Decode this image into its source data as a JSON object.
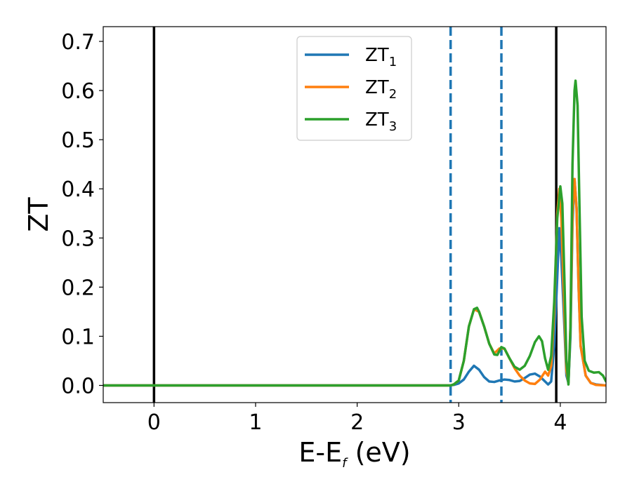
{
  "chart_data": {
    "type": "line",
    "xlabel": "E-E",
    "xlabel_sub": "f",
    "xlabel_unit": " (eV)",
    "ylabel": "ZT",
    "xlim": [
      -0.5,
      4.45
    ],
    "ylim": [
      -0.035,
      0.73
    ],
    "xticks": [
      0,
      1,
      2,
      3,
      4
    ],
    "xtick_labels": [
      "0",
      "1",
      "2",
      "3",
      "4"
    ],
    "yticks": [
      0.0,
      0.1,
      0.2,
      0.3,
      0.4,
      0.5,
      0.6,
      0.7
    ],
    "ytick_labels": [
      "0.0",
      "0.1",
      "0.2",
      "0.3",
      "0.4",
      "0.5",
      "0.6",
      "0.7"
    ],
    "grid": false,
    "legend_position": "top-center",
    "vlines": [
      {
        "x": 0.0,
        "style": "solid",
        "color": "#000000"
      },
      {
        "x": 3.96,
        "style": "solid",
        "color": "#000000"
      },
      {
        "x": 2.92,
        "style": "dashed",
        "color": "#1f77b4"
      },
      {
        "x": 3.42,
        "style": "dashed",
        "color": "#1f77b4"
      }
    ],
    "series": [
      {
        "name": "ZT",
        "sub": "1",
        "color": "#1f77b4",
        "points": [
          [
            -0.5,
            0
          ],
          [
            2.9,
            0
          ],
          [
            2.95,
            0.001
          ],
          [
            3.0,
            0.004
          ],
          [
            3.05,
            0.012
          ],
          [
            3.1,
            0.028
          ],
          [
            3.15,
            0.04
          ],
          [
            3.2,
            0.032
          ],
          [
            3.25,
            0.017
          ],
          [
            3.3,
            0.008
          ],
          [
            3.35,
            0.007
          ],
          [
            3.4,
            0.01
          ],
          [
            3.45,
            0.012
          ],
          [
            3.5,
            0.011
          ],
          [
            3.55,
            0.008
          ],
          [
            3.6,
            0.009
          ],
          [
            3.65,
            0.015
          ],
          [
            3.7,
            0.022
          ],
          [
            3.75,
            0.024
          ],
          [
            3.8,
            0.018
          ],
          [
            3.85,
            0.008
          ],
          [
            3.88,
            0.002
          ],
          [
            3.91,
            0.008
          ],
          [
            3.94,
            0.08
          ],
          [
            3.97,
            0.22
          ],
          [
            3.99,
            0.32
          ],
          [
            4.01,
            0.26
          ],
          [
            4.04,
            0.12
          ],
          [
            4.06,
            0.02
          ],
          [
            4.08,
            0.005
          ],
          [
            4.1,
            0.1
          ],
          [
            4.12,
            0.33
          ],
          [
            4.14,
            0.42
          ],
          [
            4.16,
            0.36
          ],
          [
            4.18,
            0.2
          ],
          [
            4.2,
            0.08
          ],
          [
            4.25,
            0.02
          ],
          [
            4.3,
            0.005
          ],
          [
            4.35,
            0.002
          ],
          [
            4.45,
            0
          ]
        ]
      },
      {
        "name": "ZT",
        "sub": "2",
        "color": "#ff7f0e",
        "points": [
          [
            -0.5,
            0
          ],
          [
            2.92,
            0
          ],
          [
            2.95,
            0.002
          ],
          [
            3.0,
            0.01
          ],
          [
            3.05,
            0.05
          ],
          [
            3.1,
            0.12
          ],
          [
            3.15,
            0.155
          ],
          [
            3.2,
            0.15
          ],
          [
            3.25,
            0.12
          ],
          [
            3.3,
            0.085
          ],
          [
            3.35,
            0.065
          ],
          [
            3.4,
            0.075
          ],
          [
            3.45,
            0.075
          ],
          [
            3.5,
            0.055
          ],
          [
            3.55,
            0.035
          ],
          [
            3.6,
            0.02
          ],
          [
            3.65,
            0.01
          ],
          [
            3.7,
            0.004
          ],
          [
            3.75,
            0.003
          ],
          [
            3.8,
            0.012
          ],
          [
            3.85,
            0.028
          ],
          [
            3.88,
            0.02
          ],
          [
            3.91,
            0.04
          ],
          [
            3.94,
            0.15
          ],
          [
            3.97,
            0.35
          ],
          [
            3.99,
            0.4
          ],
          [
            4.01,
            0.34
          ],
          [
            4.04,
            0.15
          ],
          [
            4.06,
            0.03
          ],
          [
            4.08,
            0.005
          ],
          [
            4.1,
            0.12
          ],
          [
            4.12,
            0.35
          ],
          [
            4.14,
            0.42
          ],
          [
            4.16,
            0.36
          ],
          [
            4.18,
            0.2
          ],
          [
            4.2,
            0.08
          ],
          [
            4.25,
            0.02
          ],
          [
            4.3,
            0.005
          ],
          [
            4.35,
            0.001
          ],
          [
            4.45,
            0
          ]
        ]
      },
      {
        "name": "ZT",
        "sub": "3",
        "color": "#2ca02c",
        "points": [
          [
            -0.5,
            0
          ],
          [
            2.92,
            0
          ],
          [
            2.95,
            0.002
          ],
          [
            3.0,
            0.01
          ],
          [
            3.05,
            0.05
          ],
          [
            3.1,
            0.12
          ],
          [
            3.15,
            0.155
          ],
          [
            3.18,
            0.158
          ],
          [
            3.2,
            0.15
          ],
          [
            3.25,
            0.12
          ],
          [
            3.3,
            0.085
          ],
          [
            3.35,
            0.063
          ],
          [
            3.38,
            0.062
          ],
          [
            3.42,
            0.078
          ],
          [
            3.45,
            0.075
          ],
          [
            3.5,
            0.055
          ],
          [
            3.55,
            0.038
          ],
          [
            3.6,
            0.032
          ],
          [
            3.65,
            0.04
          ],
          [
            3.7,
            0.06
          ],
          [
            3.75,
            0.088
          ],
          [
            3.79,
            0.1
          ],
          [
            3.82,
            0.09
          ],
          [
            3.85,
            0.055
          ],
          [
            3.88,
            0.032
          ],
          [
            3.91,
            0.06
          ],
          [
            3.94,
            0.17
          ],
          [
            3.97,
            0.34
          ],
          [
            4.0,
            0.405
          ],
          [
            4.02,
            0.37
          ],
          [
            4.04,
            0.22
          ],
          [
            4.06,
            0.05
          ],
          [
            4.08,
            0.002
          ],
          [
            4.1,
            0.12
          ],
          [
            4.12,
            0.45
          ],
          [
            4.14,
            0.6
          ],
          [
            4.15,
            0.62
          ],
          [
            4.17,
            0.57
          ],
          [
            4.19,
            0.35
          ],
          [
            4.21,
            0.14
          ],
          [
            4.24,
            0.05
          ],
          [
            4.28,
            0.03
          ],
          [
            4.33,
            0.026
          ],
          [
            4.38,
            0.027
          ],
          [
            4.42,
            0.02
          ],
          [
            4.45,
            0.008
          ]
        ]
      }
    ]
  }
}
